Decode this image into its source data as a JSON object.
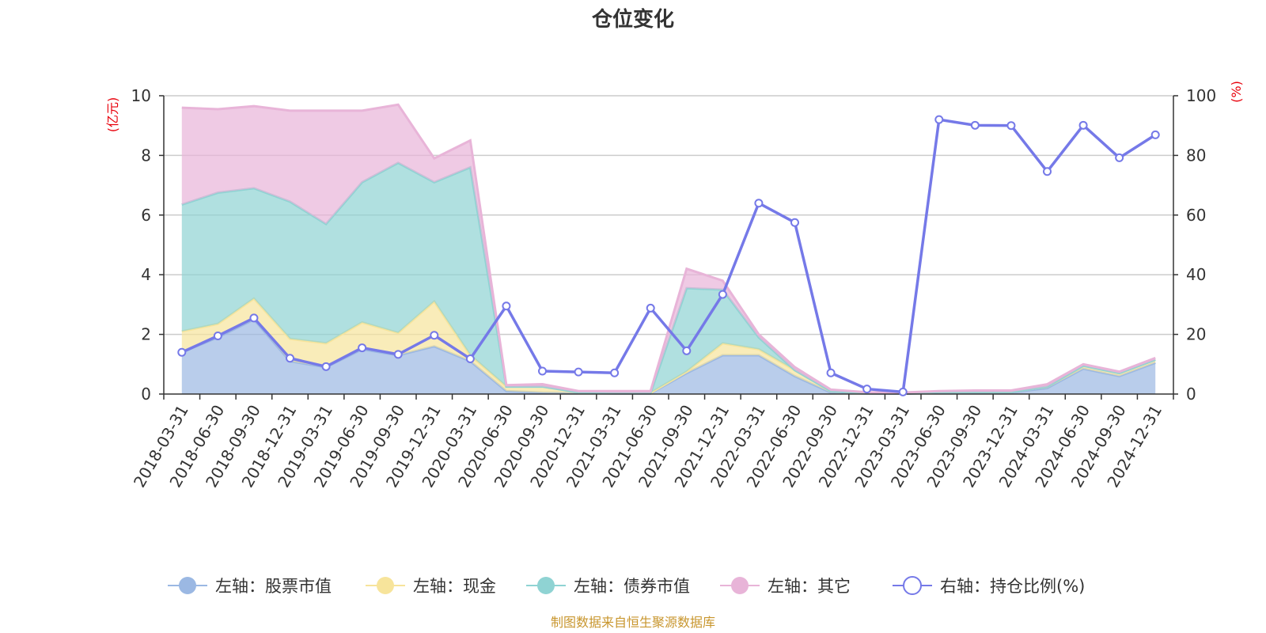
{
  "chart_data": {
    "type": "area",
    "title": "仓位变化",
    "left_axis_unit": "(亿元)",
    "right_axis_unit": "(%)",
    "left_ylim": [
      0,
      10
    ],
    "left_ticks": [
      "0",
      "2",
      "4",
      "6",
      "8",
      "10"
    ],
    "right_ylim": [
      0,
      100
    ],
    "right_ticks": [
      "0",
      "20",
      "40",
      "60",
      "80",
      "100"
    ],
    "categories": [
      "2018-03-31",
      "2018-06-30",
      "2018-09-30",
      "2018-12-31",
      "2019-03-31",
      "2019-06-30",
      "2019-09-30",
      "2019-12-31",
      "2020-03-31",
      "2020-06-30",
      "2020-09-30",
      "2020-12-31",
      "2021-03-31",
      "2021-06-30",
      "2021-09-30",
      "2021-12-31",
      "2022-03-31",
      "2022-06-30",
      "2022-09-30",
      "2022-12-31",
      "2023-03-31",
      "2023-06-30",
      "2023-09-30",
      "2023-12-31",
      "2024-03-31",
      "2024-06-30",
      "2024-09-30",
      "2024-12-31"
    ],
    "series": [
      {
        "name": "左轴：股票市值",
        "axis": "left",
        "kind": "area",
        "color": "#9bb8e3",
        "values": [
          1.4,
          1.9,
          2.5,
          1.1,
          0.9,
          1.5,
          1.3,
          1.6,
          1.1,
          0.1,
          0.05,
          0.03,
          0.02,
          0.02,
          0.7,
          1.3,
          1.3,
          0.6,
          0.05,
          0.02,
          0.01,
          0.05,
          0.05,
          0.05,
          0.2,
          0.85,
          0.6,
          1.05
        ]
      },
      {
        "name": "左轴：现金",
        "axis": "left",
        "kind": "area",
        "color": "#f7e49b",
        "values": [
          0.7,
          0.45,
          0.7,
          0.75,
          0.8,
          0.9,
          0.75,
          1.5,
          0.2,
          0.15,
          0.2,
          0.03,
          0.02,
          0.02,
          0.05,
          0.4,
          0.2,
          0.2,
          0.05,
          0.02,
          0.02,
          0.02,
          0.02,
          0.02,
          0.05,
          0.1,
          0.1,
          0.1
        ]
      },
      {
        "name": "左轴：债券市值",
        "axis": "left",
        "kind": "area",
        "color": "#8fd3d3",
        "values": [
          4.25,
          4.4,
          3.7,
          4.6,
          4.0,
          4.7,
          5.7,
          4.0,
          6.3,
          0.0,
          0.0,
          0.0,
          0.0,
          0.0,
          2.8,
          1.8,
          0.4,
          0.0,
          0.0,
          0.0,
          0.0,
          0.0,
          0.0,
          0.0,
          0.0,
          0.0,
          0.0,
          0.0
        ]
      },
      {
        "name": "左轴：其它",
        "axis": "left",
        "kind": "area",
        "color": "#e8b4d8",
        "values": [
          3.25,
          2.8,
          2.75,
          3.05,
          3.8,
          2.4,
          1.95,
          0.8,
          0.9,
          0.05,
          0.08,
          0.04,
          0.06,
          0.06,
          0.65,
          0.3,
          0.1,
          0.1,
          0.05,
          0.02,
          0.02,
          0.03,
          0.05,
          0.05,
          0.08,
          0.05,
          0.05,
          0.06
        ]
      },
      {
        "name": "右轴：持仓比例(%)",
        "axis": "right",
        "kind": "line",
        "color": "#7579e8",
        "values": [
          14,
          19.5,
          25.5,
          12,
          9.2,
          15.5,
          13.3,
          19.7,
          11.8,
          29.5,
          7.7,
          7.4,
          7.1,
          28.8,
          14.5,
          33.4,
          64,
          57.5,
          7.1,
          1.7,
          0.7,
          92,
          90.1,
          90,
          74.6,
          90.1,
          79.2,
          86.9
        ]
      }
    ],
    "source_note": "制图数据来自恒生聚源数据库"
  }
}
